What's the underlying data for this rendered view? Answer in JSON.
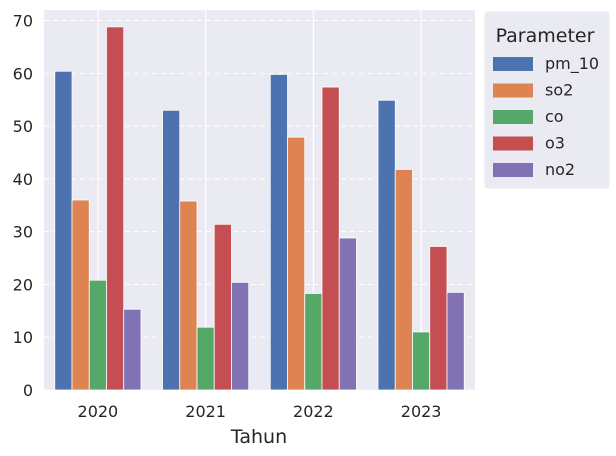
{
  "chart_data": {
    "type": "bar",
    "categories": [
      "2020",
      "2021",
      "2022",
      "2023"
    ],
    "series": [
      {
        "name": "pm_10",
        "values": [
          60.4,
          53.0,
          59.8,
          54.9
        ],
        "color": "#4c72b0"
      },
      {
        "name": "so2",
        "values": [
          36.0,
          35.8,
          47.9,
          41.8
        ],
        "color": "#dd8452"
      },
      {
        "name": "co",
        "values": [
          20.8,
          11.9,
          18.3,
          11.0
        ],
        "color": "#55a868"
      },
      {
        "name": "o3",
        "values": [
          68.8,
          31.4,
          57.4,
          27.2
        ],
        "color": "#c44e52"
      },
      {
        "name": "no2",
        "values": [
          15.3,
          20.4,
          28.8,
          18.5
        ],
        "color": "#8172b3"
      }
    ],
    "xlabel": "Tahun",
    "ylabel": "",
    "ylim": [
      0,
      72
    ],
    "yticks": [
      0,
      10,
      20,
      30,
      40,
      50,
      60,
      70
    ],
    "grid": true,
    "legend": {
      "title": "Parameter",
      "placement": "outside-right"
    },
    "background": "#eaeaf2"
  }
}
